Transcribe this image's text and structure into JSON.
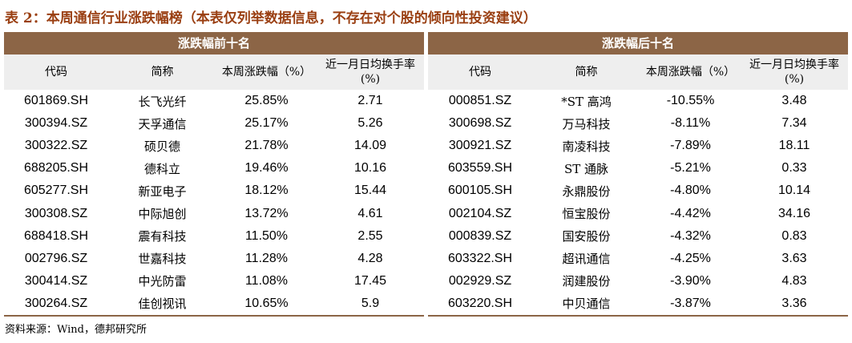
{
  "title": "表 2：本周通信行业涨跌幅榜（本表仅列举数据信息，不存在对个股的倾向性投资建议）",
  "table": {
    "sections": [
      {
        "title": "涨跌幅前十名",
        "columns": [
          "代码",
          "简称",
          "本周涨跌幅（%）",
          "近一月日均换手率(%)"
        ],
        "rows": [
          [
            "601869.SH",
            "长飞光纤",
            "25.85%",
            "2.71"
          ],
          [
            "300394.SZ",
            "天孚通信",
            "25.17%",
            "5.26"
          ],
          [
            "300322.SZ",
            "硕贝德",
            "21.78%",
            "14.09"
          ],
          [
            "688205.SH",
            "德科立",
            "19.46%",
            "10.16"
          ],
          [
            "605277.SH",
            "新亚电子",
            "18.12%",
            "15.44"
          ],
          [
            "300308.SZ",
            "中际旭创",
            "13.72%",
            "4.61"
          ],
          [
            "688418.SH",
            "震有科技",
            "11.50%",
            "2.55"
          ],
          [
            "002796.SZ",
            "世嘉科技",
            "11.28%",
            "4.28"
          ],
          [
            "300414.SZ",
            "中光防雷",
            "11.08%",
            "17.45"
          ],
          [
            "300264.SZ",
            "佳创视讯",
            "10.65%",
            "5.9"
          ]
        ]
      },
      {
        "title": "涨跌幅后十名",
        "columns": [
          "代码",
          "简称",
          "本周涨跌幅（%）",
          "近一月日均换手率(%)"
        ],
        "rows": [
          [
            "000851.SZ",
            "*ST 高鸿",
            "-10.55%",
            "3.48"
          ],
          [
            "300698.SZ",
            "万马科技",
            "-8.11%",
            "7.34"
          ],
          [
            "300921.SZ",
            "南凌科技",
            "-7.89%",
            "18.11"
          ],
          [
            "603559.SH",
            "ST 通脉",
            "-5.21%",
            "0.33"
          ],
          [
            "600105.SH",
            "永鼎股份",
            "-4.80%",
            "10.14"
          ],
          [
            "002104.SZ",
            "恒宝股份",
            "-4.42%",
            "34.16"
          ],
          [
            "000839.SZ",
            "国安股份",
            "-4.32%",
            "0.83"
          ],
          [
            "603322.SH",
            "超讯通信",
            "-4.25%",
            "3.63"
          ],
          [
            "002929.SZ",
            "润建股份",
            "-3.90%",
            "4.83"
          ],
          [
            "603220.SH",
            "中贝通信",
            "-3.87%",
            "3.36"
          ]
        ]
      }
    ]
  },
  "source": "资料来源：Wind，德邦研究所"
}
